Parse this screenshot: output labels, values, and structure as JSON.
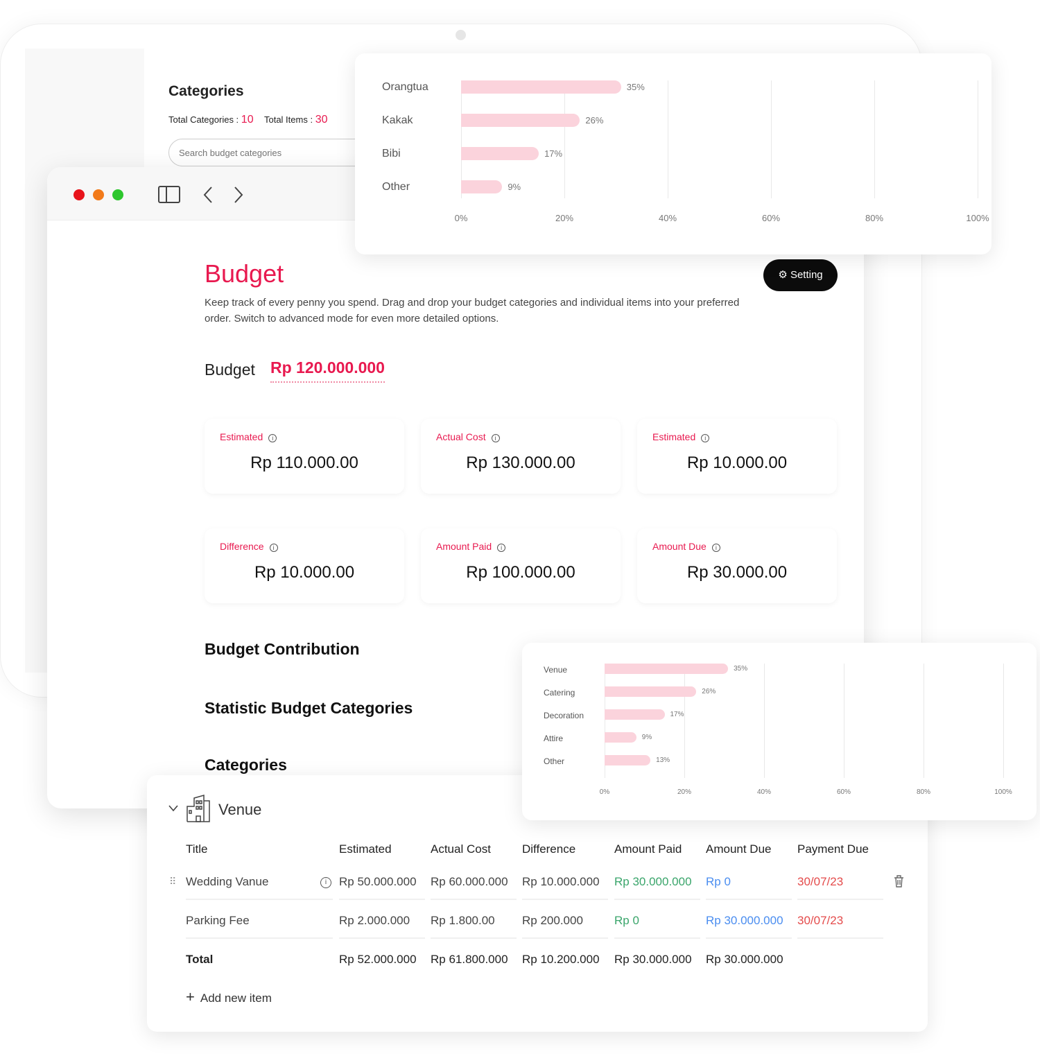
{
  "back_window": {
    "title": "Categories",
    "total_categories_label": "Total Categories :",
    "total_categories": "10",
    "total_items_label": "Total Items :",
    "total_items": "30",
    "search_placeholder": "Search budget categories"
  },
  "top_chart": {
    "chart_data": {
      "type": "bar",
      "orientation": "horizontal",
      "categories": [
        "Orangtua",
        "Kakak",
        "Bibi",
        "Other"
      ],
      "values": [
        35,
        26,
        17,
        9
      ],
      "data_labels": [
        "35%",
        "26%",
        "17%",
        "9%"
      ],
      "xticks": [
        "0%",
        "20%",
        "40%",
        "60%",
        "80%",
        "100%"
      ],
      "xlim": [
        0,
        100
      ],
      "grid": true,
      "color": "#fbd3dc"
    }
  },
  "main": {
    "title": "Budget",
    "description": "Keep track of every penny you spend. Drag and drop your budget categories and individual items into your preferred order. Switch to advanced mode for even more detailed options.",
    "setting_label": "Setting",
    "budget_label": "Budget",
    "budget_value": "Rp 120.000.000",
    "stats": [
      {
        "label": "Estimated",
        "value": "Rp 110.000.00"
      },
      {
        "label": "Actual Cost",
        "value": "Rp 130.000.00"
      },
      {
        "label": "Estimated",
        "value": "Rp 10.000.00"
      },
      {
        "label": "Difference",
        "value": "Rp 10.000.00"
      },
      {
        "label": "Amount Paid",
        "value": "Rp 100.000.00"
      },
      {
        "label": "Amount Due",
        "value": "Rp 30.000.00"
      }
    ],
    "sections": [
      "Budget Contribution",
      "Statistic Budget Categories",
      "Categories"
    ]
  },
  "bottom_chart": {
    "chart_data": {
      "type": "bar",
      "orientation": "horizontal",
      "categories": [
        "Venue",
        "Catering",
        "Decoration",
        "Attire",
        "Other"
      ],
      "values": [
        35,
        26,
        17,
        9,
        13
      ],
      "data_labels": [
        "35%",
        "26%",
        "17%",
        "9%",
        "13%"
      ],
      "xticks": [
        "0%",
        "20%",
        "40%",
        "60%",
        "80%",
        "100%"
      ],
      "xlim": [
        0,
        100
      ],
      "grid": true,
      "color": "#fbd3dc"
    }
  },
  "table": {
    "category": "Venue",
    "headers": [
      "Title",
      "Estimated",
      "Actual Cost",
      "Difference",
      "Amount Paid",
      "Amount Due",
      "Payment Due"
    ],
    "rows": [
      [
        "Wedding Vanue",
        "Rp 50.000.000",
        "Rp 60.000.000",
        "Rp 10.000.000",
        "Rp 30.000.000",
        "Rp 0",
        "30/07/23"
      ],
      [
        "Parking Fee",
        "Rp 2.000.000",
        "Rp 1.800.00",
        "Rp 200.000",
        "Rp 0",
        "Rp 30.000.000",
        "30/07/23"
      ]
    ],
    "total": [
      "Total",
      "Rp 52.000.000",
      "Rp 61.800.000",
      "Rp 10.200.000",
      "Rp 30.000.000",
      "Rp 30.000.000"
    ],
    "add_label": "Add new item",
    "colors": {
      "paid": "#3aa56b",
      "due": "#4a8df0",
      "date": "#e44b4b"
    }
  },
  "colors": {
    "accent": "#e8194f"
  }
}
